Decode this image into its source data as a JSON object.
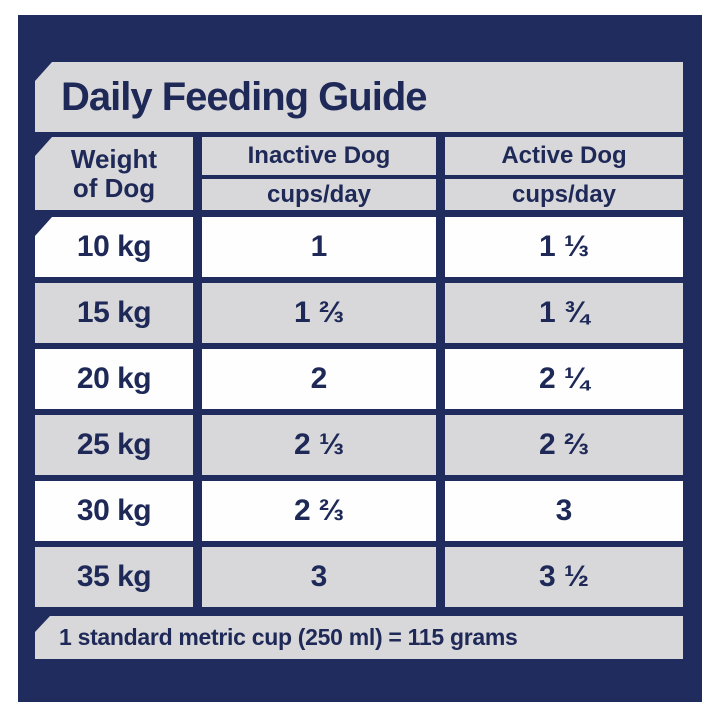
{
  "title": "Daily Feeding Guide",
  "table": {
    "weight_header": {
      "line1": "Weight",
      "line2": "of Dog"
    },
    "columns": [
      {
        "label": "Inactive Dog",
        "unit": "cups/day"
      },
      {
        "label": "Active Dog",
        "unit": "cups/day"
      }
    ],
    "rows": [
      {
        "weight": "10 kg",
        "inactive": "1",
        "active": "1 ⅓"
      },
      {
        "weight": "15 kg",
        "inactive": "1 ⅔",
        "active": "1 ¾"
      },
      {
        "weight": "20 kg",
        "inactive": "2",
        "active": "2 ¼"
      },
      {
        "weight": "25 kg",
        "inactive": "2 ⅓",
        "active": "2 ⅔"
      },
      {
        "weight": "30 kg",
        "inactive": "2 ⅔",
        "active": "3"
      },
      {
        "weight": "35 kg",
        "inactive": "3",
        "active": "3 ½"
      }
    ]
  },
  "footer": {
    "note": "1 standard metric cup (250 ml) = 115 grams"
  },
  "colors": {
    "navy_background": "#212c5e",
    "panel_gray": "#d8d8da",
    "row_white": "#fefefe",
    "text_navy": "#1e2958",
    "page_margin_white": "#ffffff"
  }
}
